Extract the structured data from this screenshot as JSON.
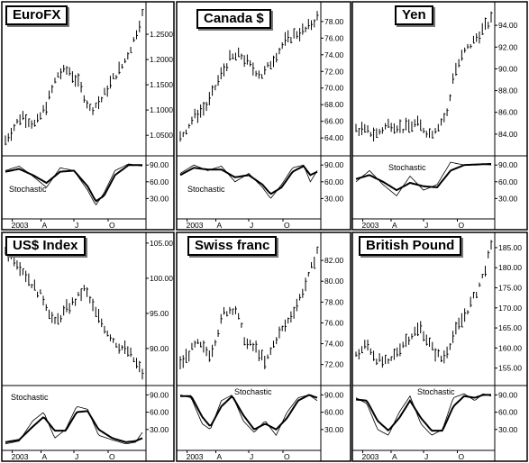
{
  "chart_data": [
    {
      "type": "ohlc",
      "title": "EuroFX",
      "price_ticks": [
        "1.2500",
        "1.2000",
        "1.1500",
        "1.1000",
        "1.0500"
      ],
      "ylim": [
        1.02,
        1.3
      ],
      "x_ticks": [
        "2003",
        "A",
        "J",
        "O"
      ],
      "stochastic_label": "Stochastic",
      "stochastic_ticks": [
        "90.00",
        "60.00",
        "30.00"
      ],
      "stochastic_ylim": [
        0,
        100
      ],
      "price_path": [
        [
          0,
          1.04
        ],
        [
          0.12,
          1.09
        ],
        [
          0.22,
          1.07
        ],
        [
          0.3,
          1.11
        ],
        [
          0.38,
          1.17
        ],
        [
          0.46,
          1.18
        ],
        [
          0.54,
          1.15
        ],
        [
          0.62,
          1.1
        ],
        [
          0.7,
          1.12
        ],
        [
          0.78,
          1.16
        ],
        [
          0.86,
          1.19
        ],
        [
          0.94,
          1.24
        ],
        [
          1,
          1.29
        ]
      ],
      "stochastic_k": [
        [
          0,
          80
        ],
        [
          0.1,
          88
        ],
        [
          0.2,
          70
        ],
        [
          0.3,
          50
        ],
        [
          0.4,
          85
        ],
        [
          0.5,
          80
        ],
        [
          0.6,
          45
        ],
        [
          0.66,
          18
        ],
        [
          0.72,
          40
        ],
        [
          0.8,
          80
        ],
        [
          0.9,
          92
        ],
        [
          1,
          88
        ]
      ],
      "stochastic_d": [
        [
          0,
          78
        ],
        [
          0.1,
          83
        ],
        [
          0.2,
          72
        ],
        [
          0.3,
          58
        ],
        [
          0.4,
          78
        ],
        [
          0.5,
          80
        ],
        [
          0.6,
          52
        ],
        [
          0.66,
          25
        ],
        [
          0.72,
          35
        ],
        [
          0.8,
          72
        ],
        [
          0.9,
          90
        ],
        [
          1,
          90
        ]
      ]
    },
    {
      "type": "ohlc",
      "title": "Canada $",
      "price_ticks": [
        "78.00",
        "76.00",
        "74.00",
        "72.00",
        "70.00",
        "68.00",
        "66.00",
        "64.00"
      ],
      "ylim": [
        62.5,
        79.5
      ],
      "x_ticks": [
        "2003",
        "A",
        "J",
        "O"
      ],
      "stochastic_label": "Stochastic",
      "stochastic_ticks": [
        "90.00",
        "60.00",
        "30.00"
      ],
      "stochastic_ylim": [
        0,
        100
      ],
      "price_path": [
        [
          0,
          64.0
        ],
        [
          0.1,
          66.5
        ],
        [
          0.2,
          68.0
        ],
        [
          0.28,
          71.0
        ],
        [
          0.36,
          73.5
        ],
        [
          0.44,
          74.0
        ],
        [
          0.52,
          72.5
        ],
        [
          0.6,
          71.5
        ],
        [
          0.68,
          73.5
        ],
        [
          0.76,
          75.5
        ],
        [
          0.84,
          76.5
        ],
        [
          0.92,
          77.0
        ],
        [
          1,
          78.5
        ]
      ],
      "stochastic_k": [
        [
          0,
          75
        ],
        [
          0.1,
          90
        ],
        [
          0.2,
          80
        ],
        [
          0.3,
          88
        ],
        [
          0.4,
          60
        ],
        [
          0.5,
          75
        ],
        [
          0.6,
          50
        ],
        [
          0.66,
          30
        ],
        [
          0.74,
          55
        ],
        [
          0.82,
          85
        ],
        [
          0.9,
          90
        ],
        [
          0.95,
          60
        ],
        [
          1,
          80
        ]
      ],
      "stochastic_d": [
        [
          0,
          72
        ],
        [
          0.1,
          85
        ],
        [
          0.2,
          82
        ],
        [
          0.3,
          82
        ],
        [
          0.4,
          68
        ],
        [
          0.5,
          72
        ],
        [
          0.6,
          55
        ],
        [
          0.66,
          38
        ],
        [
          0.74,
          50
        ],
        [
          0.82,
          78
        ],
        [
          0.9,
          88
        ],
        [
          0.95,
          72
        ],
        [
          1,
          78
        ]
      ]
    },
    {
      "type": "ohlc",
      "title": "Yen",
      "price_ticks": [
        "94.00",
        "92.00",
        "90.00",
        "88.00",
        "86.00",
        "84.00"
      ],
      "ylim": [
        82.5,
        95.5
      ],
      "x_ticks": [
        "2003",
        "A",
        "J",
        "O"
      ],
      "stochastic_label": "Stochastic",
      "stochastic_ticks": [
        "90.00",
        "60.00",
        "30.00"
      ],
      "stochastic_ylim": [
        0,
        100
      ],
      "price_path": [
        [
          0,
          84.5
        ],
        [
          0.15,
          84.0
        ],
        [
          0.25,
          85.0
        ],
        [
          0.35,
          84.5
        ],
        [
          0.45,
          85.0
        ],
        [
          0.55,
          84.0
        ],
        [
          0.62,
          85.0
        ],
        [
          0.68,
          86.0
        ],
        [
          0.72,
          89.5
        ],
        [
          0.8,
          91.5
        ],
        [
          0.9,
          93.0
        ],
        [
          1,
          94.5
        ]
      ],
      "stochastic_k": [
        [
          0,
          60
        ],
        [
          0.1,
          80
        ],
        [
          0.2,
          55
        ],
        [
          0.3,
          35
        ],
        [
          0.4,
          70
        ],
        [
          0.5,
          45
        ],
        [
          0.6,
          55
        ],
        [
          0.7,
          95
        ],
        [
          0.8,
          90
        ],
        [
          0.9,
          92
        ],
        [
          1,
          90
        ]
      ],
      "stochastic_d": [
        [
          0,
          65
        ],
        [
          0.1,
          72
        ],
        [
          0.2,
          60
        ],
        [
          0.3,
          45
        ],
        [
          0.4,
          58
        ],
        [
          0.5,
          52
        ],
        [
          0.6,
          50
        ],
        [
          0.7,
          80
        ],
        [
          0.8,
          90
        ],
        [
          0.9,
          91
        ],
        [
          1,
          92
        ]
      ]
    },
    {
      "type": "ohlc",
      "title": "US$ Index",
      "price_ticks": [
        "105.00",
        "100.00",
        "95.00",
        "90.00"
      ],
      "ylim": [
        85.5,
        105.5
      ],
      "x_ticks": [
        "2003",
        "A",
        "J",
        "O"
      ],
      "stochastic_label": "Stochastic",
      "stochastic_ticks": [
        "90.00",
        "60.00",
        "30.00"
      ],
      "stochastic_ylim": [
        0,
        100
      ],
      "price_path": [
        [
          0,
          104.0
        ],
        [
          0.1,
          102.0
        ],
        [
          0.2,
          99.0
        ],
        [
          0.28,
          97.0
        ],
        [
          0.36,
          93.5
        ],
        [
          0.44,
          95.5
        ],
        [
          0.52,
          97.0
        ],
        [
          0.58,
          98.5
        ],
        [
          0.66,
          95.0
        ],
        [
          0.74,
          92.5
        ],
        [
          0.82,
          90.5
        ],
        [
          0.9,
          89.5
        ],
        [
          1,
          86.5
        ]
      ],
      "stochastic_k": [
        [
          0,
          5
        ],
        [
          0.1,
          10
        ],
        [
          0.2,
          45
        ],
        [
          0.28,
          60
        ],
        [
          0.36,
          15
        ],
        [
          0.44,
          30
        ],
        [
          0.52,
          70
        ],
        [
          0.6,
          65
        ],
        [
          0.68,
          20
        ],
        [
          0.78,
          12
        ],
        [
          0.88,
          5
        ],
        [
          0.95,
          8
        ],
        [
          1,
          25
        ]
      ],
      "stochastic_d": [
        [
          0,
          8
        ],
        [
          0.1,
          12
        ],
        [
          0.2,
          35
        ],
        [
          0.28,
          52
        ],
        [
          0.36,
          28
        ],
        [
          0.44,
          28
        ],
        [
          0.52,
          60
        ],
        [
          0.6,
          62
        ],
        [
          0.68,
          30
        ],
        [
          0.78,
          15
        ],
        [
          0.88,
          8
        ],
        [
          0.95,
          10
        ],
        [
          1,
          15
        ]
      ]
    },
    {
      "type": "ohlc",
      "title": "Swiss franc",
      "price_ticks": [
        "82.00",
        "80.00",
        "78.00",
        "76.00",
        "74.00",
        "72.00"
      ],
      "ylim": [
        70.5,
        84.0
      ],
      "x_ticks": [
        "2003",
        "A",
        "J",
        "O"
      ],
      "stochastic_label": "Stochastic",
      "stochastic_ticks": [
        "90.00",
        "60.00",
        "30.00"
      ],
      "stochastic_ylim": [
        0,
        100
      ],
      "price_path": [
        [
          0,
          72.0
        ],
        [
          0.12,
          74.0
        ],
        [
          0.22,
          73.0
        ],
        [
          0.32,
          77.0
        ],
        [
          0.4,
          77.5
        ],
        [
          0.48,
          74.0
        ],
        [
          0.56,
          73.5
        ],
        [
          0.62,
          72.0
        ],
        [
          0.7,
          74.5
        ],
        [
          0.78,
          76.0
        ],
        [
          0.86,
          78.0
        ],
        [
          0.94,
          80.5
        ],
        [
          1,
          83.0
        ]
      ],
      "stochastic_k": [
        [
          0,
          90
        ],
        [
          0.08,
          85
        ],
        [
          0.16,
          40
        ],
        [
          0.22,
          30
        ],
        [
          0.3,
          80
        ],
        [
          0.38,
          90
        ],
        [
          0.46,
          45
        ],
        [
          0.54,
          25
        ],
        [
          0.62,
          45
        ],
        [
          0.7,
          20
        ],
        [
          0.78,
          60
        ],
        [
          0.86,
          85
        ],
        [
          0.94,
          90
        ],
        [
          1,
          80
        ]
      ],
      "stochastic_d": [
        [
          0,
          88
        ],
        [
          0.08,
          88
        ],
        [
          0.16,
          52
        ],
        [
          0.22,
          35
        ],
        [
          0.3,
          70
        ],
        [
          0.38,
          88
        ],
        [
          0.46,
          55
        ],
        [
          0.54,
          30
        ],
        [
          0.62,
          40
        ],
        [
          0.7,
          30
        ],
        [
          0.78,
          50
        ],
        [
          0.86,
          80
        ],
        [
          0.94,
          90
        ],
        [
          1,
          85
        ]
      ]
    },
    {
      "type": "ohlc",
      "title": "British Pound",
      "price_ticks": [
        "185.00",
        "180.00",
        "175.00",
        "170.00",
        "165.00",
        "160.00",
        "155.00"
      ],
      "ylim": [
        152.0,
        187.0
      ],
      "x_ticks": [
        "2003",
        "A",
        "J",
        "O"
      ],
      "stochastic_label": "Stochastic",
      "stochastic_ticks": [
        "90.00",
        "60.00",
        "30.00"
      ],
      "stochastic_ylim": [
        0,
        100
      ],
      "price_path": [
        [
          0,
          158.0
        ],
        [
          0.08,
          161.0
        ],
        [
          0.16,
          157.0
        ],
        [
          0.24,
          156.0
        ],
        [
          0.32,
          160.0
        ],
        [
          0.4,
          163.0
        ],
        [
          0.48,
          165.0
        ],
        [
          0.56,
          160.0
        ],
        [
          0.64,
          157.0
        ],
        [
          0.72,
          163.0
        ],
        [
          0.8,
          168.0
        ],
        [
          0.88,
          173.0
        ],
        [
          0.94,
          178.0
        ],
        [
          1,
          185.0
        ]
      ],
      "stochastic_k": [
        [
          0,
          85
        ],
        [
          0.08,
          75
        ],
        [
          0.16,
          30
        ],
        [
          0.24,
          20
        ],
        [
          0.32,
          60
        ],
        [
          0.4,
          88
        ],
        [
          0.48,
          40
        ],
        [
          0.56,
          20
        ],
        [
          0.64,
          30
        ],
        [
          0.72,
          85
        ],
        [
          0.8,
          92
        ],
        [
          0.88,
          80
        ],
        [
          0.94,
          92
        ],
        [
          1,
          88
        ]
      ],
      "stochastic_d": [
        [
          0,
          82
        ],
        [
          0.08,
          80
        ],
        [
          0.16,
          45
        ],
        [
          0.24,
          28
        ],
        [
          0.32,
          50
        ],
        [
          0.4,
          80
        ],
        [
          0.48,
          50
        ],
        [
          0.56,
          28
        ],
        [
          0.64,
          28
        ],
        [
          0.72,
          70
        ],
        [
          0.8,
          88
        ],
        [
          0.88,
          85
        ],
        [
          0.94,
          90
        ],
        [
          1,
          90
        ]
      ]
    }
  ]
}
